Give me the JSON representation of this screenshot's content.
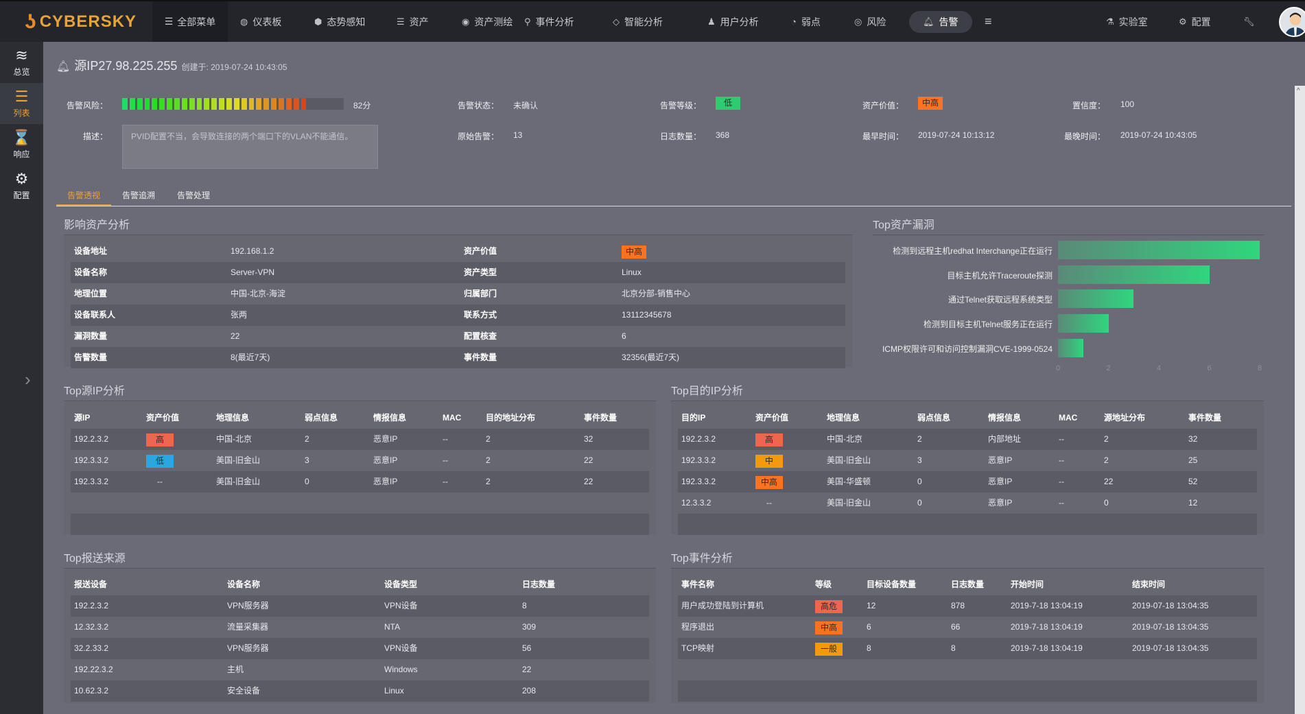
{
  "brand": "CYBERSKY",
  "nav": {
    "all_menu": "全部菜单",
    "items": [
      {
        "label": "仪表板",
        "icon": "dashboard-icon",
        "glyph": "◍"
      },
      {
        "label": "态势感知",
        "icon": "shield-icon",
        "glyph": "⬢"
      },
      {
        "label": "资产",
        "icon": "server-icon",
        "glyph": "☰"
      },
      {
        "label": "资产测绘",
        "icon": "eye-icon",
        "glyph": "◉"
      },
      {
        "label": "事件分析",
        "icon": "search-icon",
        "glyph": "⚲"
      },
      {
        "label": "智能分析",
        "icon": "diamond-icon",
        "glyph": "◇"
      },
      {
        "label": "用户分析",
        "icon": "user-icon",
        "glyph": "♟"
      },
      {
        "label": "弱点",
        "icon": "vulnerability-icon",
        "glyph": "◔"
      },
      {
        "label": "风险",
        "icon": "lifebuoy-icon",
        "glyph": "◎"
      }
    ],
    "active": "告警",
    "lab": "实验室",
    "config": "配置"
  },
  "sidebar": [
    {
      "label": "总览",
      "glyph": "≋"
    },
    {
      "label": "列表",
      "glyph": "☰"
    },
    {
      "label": "响应",
      "glyph": "⌛"
    },
    {
      "label": "配置",
      "glyph": "⚙"
    }
  ],
  "alert": {
    "title": "源IP27.98.225.255",
    "created": "创建于: 2019-07-24 10:43:05",
    "risk_label": "告警风险：",
    "risk_score": 82,
    "risk_text": "82分",
    "status_label": "告警状态：",
    "status": "未确认",
    "level_label": "告警等级：",
    "level": "低",
    "asset_value_label": "资产价值：",
    "asset_value": "中高",
    "confidence_label": "置信度：",
    "confidence": "100",
    "desc_label": "描述：",
    "desc": "PVID配置不当，会导致连接的两个端口下的VLAN不能通信。",
    "raw_label": "原始告警：",
    "raw": "13",
    "logs_label": "日志数量：",
    "logs": "368",
    "earliest_label": "最早时间：",
    "earliest": "2019-07-24 10:13:12",
    "latest_label": "最晚时间：",
    "latest": "2019-07-24 10:43:05"
  },
  "colors": {
    "高": "#ef6650",
    "低": "#2aa7e0",
    "中": "#f39a0c",
    "中高": "#fb7321",
    "高危": "#ef6650",
    "一般": "#f39a0c",
    "level_low": "#2ecc71",
    "accent": "#e8a23a"
  },
  "tabs": [
    "告警透视",
    "告警追溯",
    "告警处理"
  ],
  "asset": {
    "title": "影响资产分析",
    "rows": [
      [
        "设备地址",
        "192.168.1.2",
        "资产价值",
        "中高"
      ],
      [
        "设备名称",
        "Server-VPN",
        "资产类型",
        "Linux"
      ],
      [
        "地理位置",
        "中国-北京-海淀",
        "归属部门",
        "北京分部-销售中心"
      ],
      [
        "设备联系人",
        "张两",
        "联系方式",
        "13112345678"
      ],
      [
        "漏洞数量",
        "22",
        "配置核查",
        "6"
      ],
      [
        "告警数量",
        "8(最近7天)",
        "事件数量",
        "32356(最近7天)"
      ]
    ]
  },
  "chart_data": {
    "type": "bar",
    "orientation": "horizontal",
    "title": "Top资产漏洞",
    "categories": [
      "检测到远程主机redhat Interchange正在运行",
      "目标主机允许Traceroute探测",
      "通过Telnet获取远程系统类型",
      "检测到目标主机Telnet服务正在运行",
      "ICMP权限许可和访问控制漏洞CVE-1999-0524"
    ],
    "values": [
      8,
      6,
      3,
      2,
      1
    ],
    "xlim": [
      0,
      8
    ],
    "xticks": [
      0,
      2,
      4,
      6,
      8
    ],
    "grid": false,
    "color": "#2fd67e"
  },
  "src_ip": {
    "title": "Top源IP分析",
    "headers": [
      "源IP",
      "资产价值",
      "地理信息",
      "弱点信息",
      "情报信息",
      "MAC",
      "目的地址分布",
      "事件数量"
    ],
    "rows": [
      [
        "192.2.3.2",
        "高",
        "中国-北京",
        "2",
        "恶意IP",
        "--",
        "2",
        "32"
      ],
      [
        "192.3.3.2",
        "低",
        "美国-旧金山",
        "3",
        "恶意IP",
        "--",
        "2",
        "22"
      ],
      [
        "192.3.3.2",
        "--",
        "美国-旧金山",
        "0",
        "恶意IP",
        "--",
        "2",
        "22"
      ]
    ]
  },
  "dst_ip": {
    "title": "Top目的IP分析",
    "headers": [
      "目的IP",
      "资产价值",
      "地理信息",
      "弱点信息",
      "情报信息",
      "MAC",
      "源地址分布",
      "事件数量"
    ],
    "rows": [
      [
        "192.2.3.2",
        "高",
        "中国-北京",
        "2",
        "内部地址",
        "--",
        "2",
        "32"
      ],
      [
        "192.3.3.2",
        "中",
        "美国-旧金山",
        "3",
        "恶意IP",
        "--",
        "2",
        "25"
      ],
      [
        "192.3.3.2",
        "中高",
        "美国-华盛顿",
        "0",
        "恶意IP",
        "--",
        "22",
        "52"
      ],
      [
        "12.3.3.2",
        "--",
        "美国-旧金山",
        "0",
        "恶意IP",
        "--",
        "0",
        "12"
      ]
    ]
  },
  "reporters": {
    "title": "Top报送来源",
    "headers": [
      "报送设备",
      "设备名称",
      "设备类型",
      "日志数量"
    ],
    "rows": [
      [
        "192.2.3.2",
        "VPN服务器",
        "VPN设备",
        "8"
      ],
      [
        "12.32.3.2",
        "流量采集器",
        "NTA",
        "309"
      ],
      [
        "32.2.33.2",
        "VPN服务器",
        "VPN设备",
        "56"
      ],
      [
        "192.22.3.2",
        "主机",
        "Windows",
        "22"
      ],
      [
        "10.62.3.2",
        "安全设备",
        "Linux",
        "208"
      ]
    ]
  },
  "events": {
    "title": "Top事件分析",
    "headers": [
      "事件名称",
      "等级",
      "目标设备数量",
      "日志数量",
      "开始时间",
      "结束时间"
    ],
    "rows": [
      [
        "用户成功登陆到计算机",
        "高危",
        "12",
        "878",
        "2019-7-18 13:04:19",
        "2019-07-18 13:04:35"
      ],
      [
        "程序退出",
        "中高",
        "6",
        "66",
        "2019-7-18 13:04:19",
        "2019-07-18 13:04:35"
      ],
      [
        "TCP映射",
        "一般",
        "8",
        "8",
        "2019-7-18 13:04:19",
        "2019-07-18 13:04:35"
      ]
    ]
  }
}
